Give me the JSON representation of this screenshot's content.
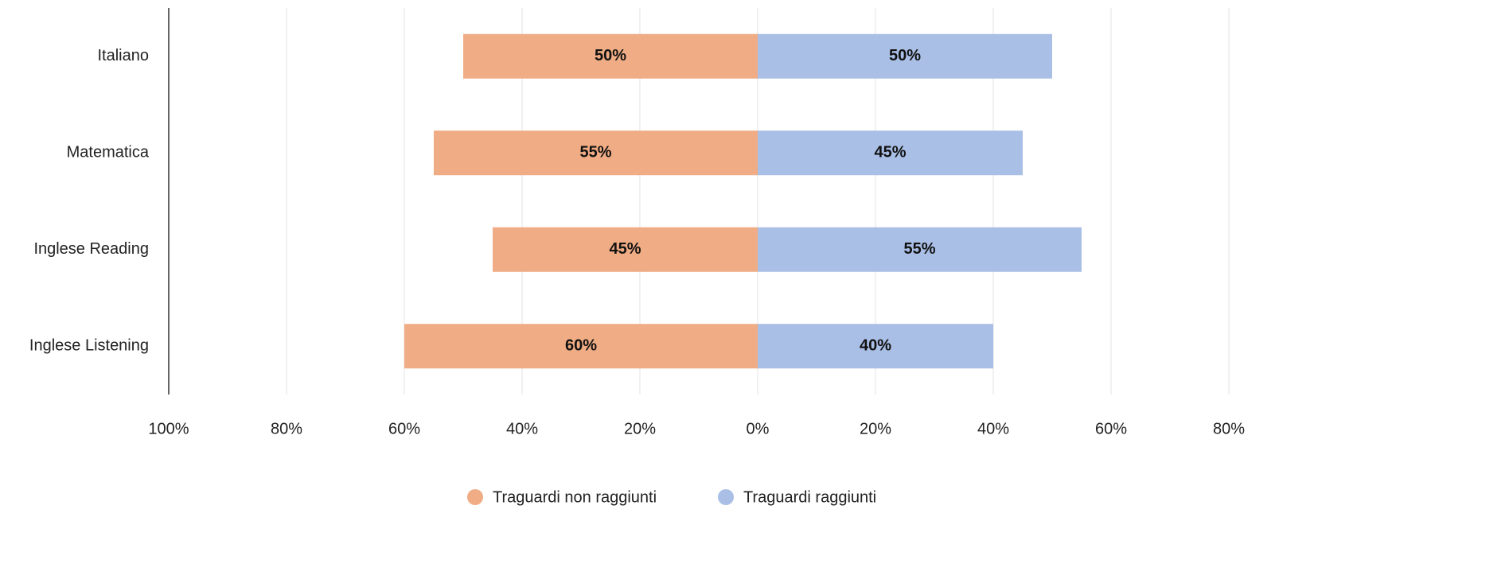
{
  "chart_data": {
    "type": "diverging_bar",
    "categories": [
      "Italiano",
      "Matematica",
      "Inglese Reading",
      "Inglese Listening"
    ],
    "series": [
      {
        "name": "Traguardi non raggiunti",
        "color": "#f0ac84",
        "values": [
          -50,
          -55,
          -45,
          -60
        ],
        "value_labels": [
          "50%",
          "55%",
          "45%",
          "60%"
        ]
      },
      {
        "name": "Traguardi raggiunti",
        "color": "#a9bfe6",
        "values": [
          50,
          45,
          55,
          40
        ],
        "value_labels": [
          "50%",
          "45%",
          "55%",
          "40%"
        ]
      }
    ],
    "xlim": [
      -100,
      80
    ],
    "xticks": [
      {
        "value": -100,
        "label": "100%"
      },
      {
        "value": -80,
        "label": "80%"
      },
      {
        "value": -60,
        "label": "60%"
      },
      {
        "value": -40,
        "label": "40%"
      },
      {
        "value": -20,
        "label": "20%"
      },
      {
        "value": 0,
        "label": "0%"
      },
      {
        "value": 20,
        "label": "20%"
      },
      {
        "value": 40,
        "label": "40%"
      },
      {
        "value": 60,
        "label": "60%"
      },
      {
        "value": 80,
        "label": "80%"
      }
    ],
    "grid": true,
    "legend": "bottom"
  }
}
